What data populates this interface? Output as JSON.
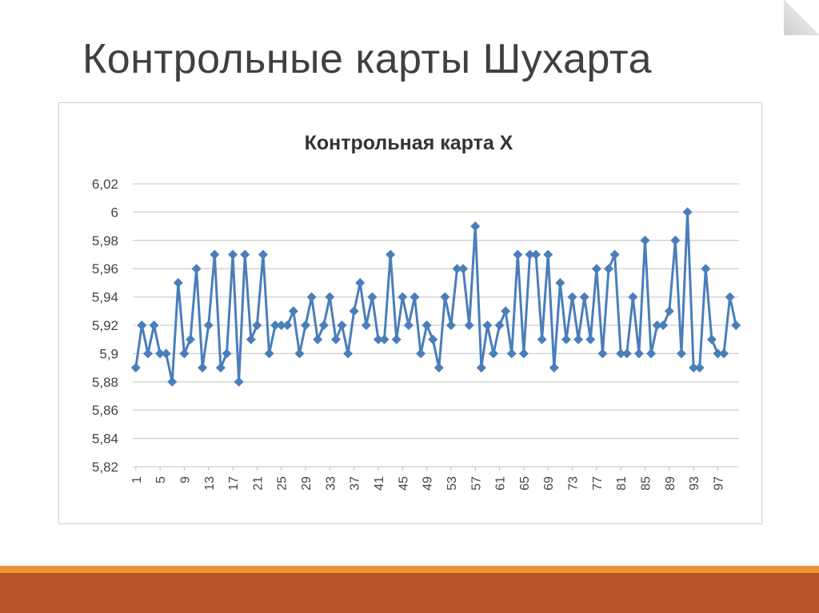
{
  "slide": {
    "title": "Контрольные карты Шухарта"
  },
  "colors": {
    "series": "#4a7ebb",
    "grid": "#d0d0d0",
    "footer_accent": "#ee9430",
    "footer_bar": "#b95328"
  },
  "chart_data": {
    "type": "line",
    "title": "Контрольная карта X",
    "xlabel": "",
    "ylabel": "",
    "ylim": [
      5.82,
      6.02
    ],
    "y_ticks": [
      "5,82",
      "5,84",
      "5,86",
      "5,88",
      "5,9",
      "5,92",
      "5,94",
      "5,96",
      "5,98",
      "6",
      "6,02"
    ],
    "x_tick_labels": [
      "1",
      "5",
      "9",
      "13",
      "17",
      "21",
      "25",
      "29",
      "33",
      "37",
      "41",
      "45",
      "49",
      "53",
      "57",
      "61",
      "65",
      "69",
      "73",
      "77",
      "81",
      "85",
      "89",
      "93",
      "97"
    ],
    "x_tick_step": 4,
    "marker": "diamond",
    "grid": true,
    "legend": "none",
    "series": [
      {
        "values": [
          5.89,
          5.92,
          5.9,
          5.92,
          5.9,
          5.9,
          5.88,
          5.95,
          5.9,
          5.91,
          5.96,
          5.89,
          5.92,
          5.97,
          5.89,
          5.9,
          5.97,
          5.88,
          5.97,
          5.91,
          5.92,
          5.97,
          5.9,
          5.92,
          5.92,
          5.92,
          5.93,
          5.9,
          5.92,
          5.94,
          5.91,
          5.92,
          5.94,
          5.91,
          5.92,
          5.9,
          5.93,
          5.95,
          5.92,
          5.94,
          5.91,
          5.91,
          5.97,
          5.91,
          5.94,
          5.92,
          5.94,
          5.9,
          5.92,
          5.91,
          5.89,
          5.94,
          5.92,
          5.96,
          5.96,
          5.92,
          5.99,
          5.89,
          5.92,
          5.9,
          5.92,
          5.93,
          5.9,
          5.97,
          5.9,
          5.97,
          5.97,
          5.91,
          5.97,
          5.89,
          5.95,
          5.91,
          5.94,
          5.91,
          5.94,
          5.91,
          5.96,
          5.9,
          5.96,
          5.97,
          5.9,
          5.9,
          5.94,
          5.9,
          5.98,
          5.9,
          5.92,
          5.92,
          5.93,
          5.98,
          5.9,
          6.0,
          5.89,
          5.89,
          5.96,
          5.91,
          5.9,
          5.9,
          5.94,
          5.92
        ]
      }
    ]
  }
}
